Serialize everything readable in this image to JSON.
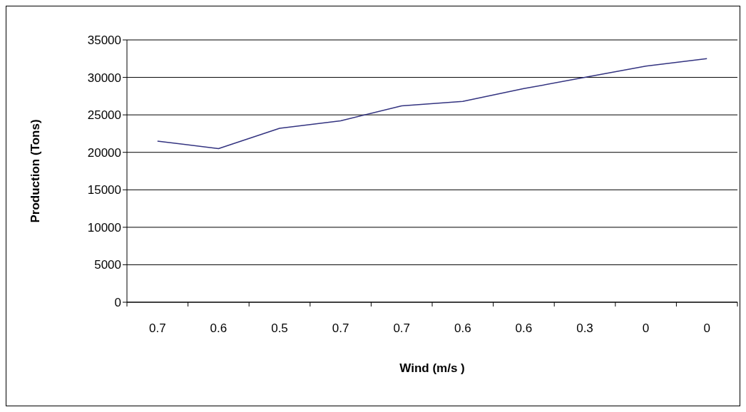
{
  "chart_data": {
    "type": "line",
    "xlabel": "Wind (m/s )",
    "ylabel": "Production (Tons)",
    "categories": [
      "0.7",
      "0.6",
      "0.5",
      "0.7",
      "0.7",
      "0.6",
      "0.6",
      "0.3",
      "0",
      "0"
    ],
    "series": [
      {
        "color": "#333380",
        "values": [
          21500,
          20500,
          23200,
          24200,
          26200,
          26800,
          28500,
          30000,
          31500,
          32500
        ]
      }
    ],
    "ylim": [
      0,
      35000
    ],
    "yticks": [
      0,
      5000,
      10000,
      15000,
      20000,
      25000,
      30000,
      35000
    ],
    "grid": "y",
    "legend": false,
    "marker": "none",
    "line_style": "solid"
  }
}
